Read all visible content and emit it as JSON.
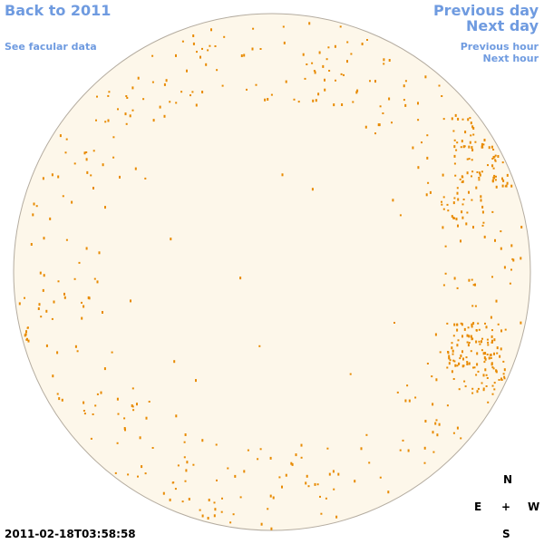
{
  "nav": {
    "back": "Back to 2011",
    "facular": "See facular data",
    "previous_day": "Previous day",
    "next_day": "Next day",
    "previous_hour": "Previous hour",
    "next_hour": "Next hour"
  },
  "timestamp": "2011-02-18T03:58:58",
  "compass": {
    "north": "N",
    "east": "E",
    "center": "+",
    "west": "W",
    "south": "S"
  }
}
